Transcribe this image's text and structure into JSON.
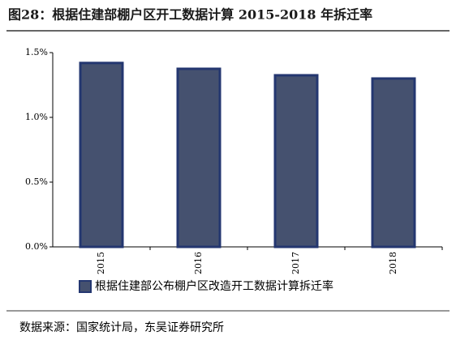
{
  "chart_data": {
    "type": "bar",
    "title": "图28：根据住建部棚户区开工数据计算 2015-2018 年拆迁率",
    "categories": [
      "2015",
      "2016",
      "2017",
      "2018"
    ],
    "series": [
      {
        "name": "根据住建部公布棚户区改造开工数据计算拆迁率",
        "color": "#45516f",
        "values": [
          1.42,
          1.375,
          1.325,
          1.3
        ]
      }
    ],
    "ylim": [
      0,
      1.5
    ],
    "yticks": [
      {
        "value": 0,
        "label": "0.0%"
      },
      {
        "value": 0.5,
        "label": "0.5%"
      },
      {
        "value": 1,
        "label": "1.0%"
      },
      {
        "value": 1.5,
        "label": "1.5%"
      }
    ],
    "legend": "bottom",
    "source": "数据来源：国家统计局，东吴证券研究所"
  }
}
